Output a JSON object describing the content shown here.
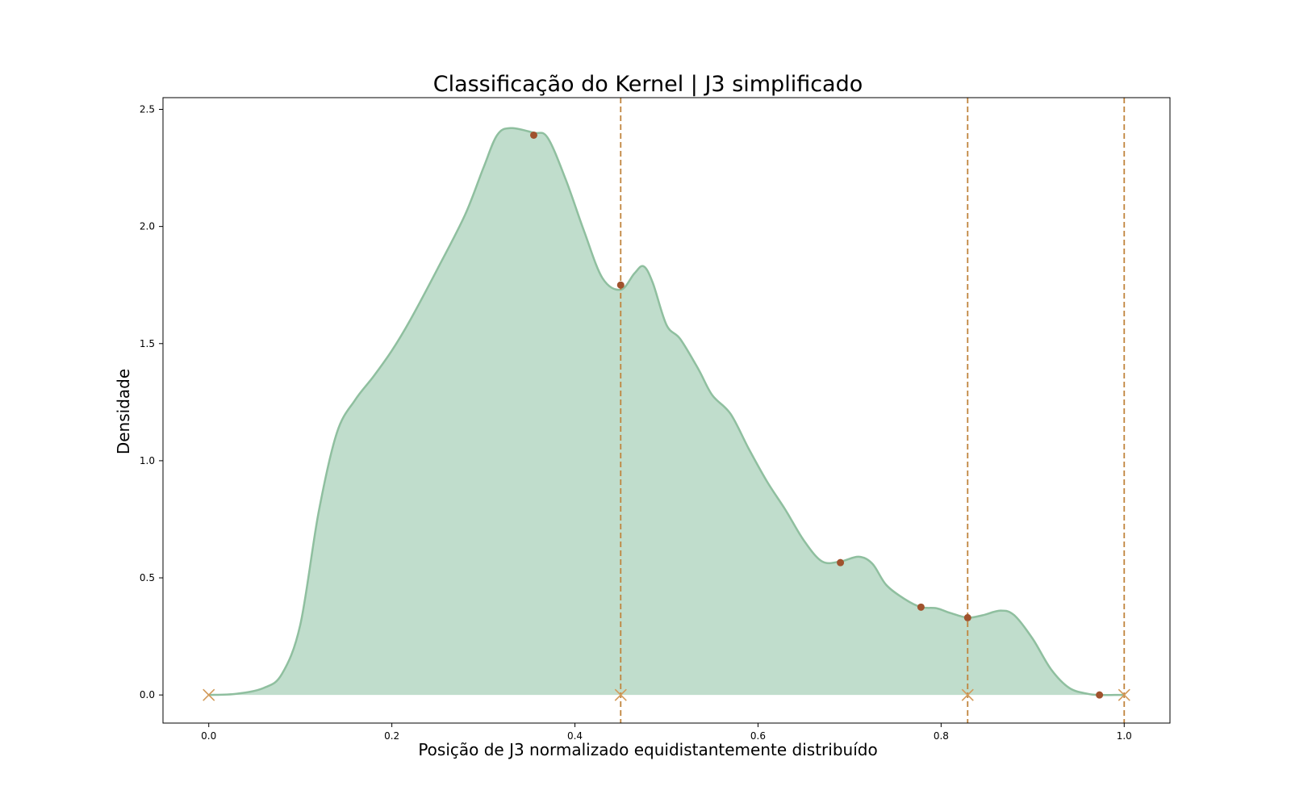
{
  "chart_data": {
    "type": "area",
    "title": "Classificação do Kernel | J3 simplificado",
    "xlabel": "Posição de J3 normalizado equidistantemente distribuído",
    "ylabel": "Densidade",
    "xlim": [
      -0.05,
      1.05
    ],
    "ylim": [
      -0.12,
      2.55
    ],
    "x_ticks": [
      "0.0",
      "0.2",
      "0.4",
      "0.6",
      "0.8",
      "1.0"
    ],
    "y_ticks": [
      "0.0",
      "0.5",
      "1.0",
      "1.5",
      "2.0",
      "2.5"
    ],
    "grid": false,
    "colors": {
      "fill": "#c0ddcc",
      "line": "#8fbf9f",
      "vline": "#c0843d",
      "dot": "#a0522d",
      "marker_x": "#d29a5a"
    },
    "density": {
      "x": [
        0.0,
        0.03,
        0.06,
        0.08,
        0.1,
        0.12,
        0.14,
        0.16,
        0.18,
        0.2,
        0.22,
        0.25,
        0.28,
        0.3,
        0.315,
        0.33,
        0.355,
        0.37,
        0.39,
        0.41,
        0.43,
        0.45,
        0.465,
        0.475,
        0.485,
        0.5,
        0.515,
        0.535,
        0.55,
        0.57,
        0.59,
        0.61,
        0.63,
        0.65,
        0.67,
        0.69,
        0.71,
        0.725,
        0.74,
        0.76,
        0.778,
        0.795,
        0.81,
        0.829,
        0.845,
        0.865,
        0.88,
        0.9,
        0.92,
        0.94,
        0.96,
        0.973,
        0.99,
        1.0
      ],
      "y": [
        0.0,
        0.005,
        0.03,
        0.09,
        0.3,
        0.78,
        1.12,
        1.26,
        1.36,
        1.47,
        1.6,
        1.82,
        2.05,
        2.25,
        2.39,
        2.42,
        2.4,
        2.38,
        2.2,
        1.98,
        1.78,
        1.73,
        1.8,
        1.83,
        1.76,
        1.58,
        1.52,
        1.39,
        1.28,
        1.2,
        1.05,
        0.91,
        0.79,
        0.66,
        0.57,
        0.57,
        0.59,
        0.56,
        0.47,
        0.41,
        0.375,
        0.37,
        0.35,
        0.33,
        0.34,
        0.36,
        0.34,
        0.24,
        0.11,
        0.03,
        0.005,
        0.0,
        0.0,
        0.0
      ]
    },
    "points": {
      "x": [
        0.355,
        0.45,
        0.69,
        0.778,
        0.829,
        0.973
      ],
      "y": [
        2.39,
        1.75,
        0.565,
        0.375,
        0.33,
        0.0
      ]
    },
    "vlines": [
      0.45,
      0.829,
      1.0
    ],
    "x_markers": [
      0.0,
      0.45,
      0.829,
      1.0
    ]
  }
}
